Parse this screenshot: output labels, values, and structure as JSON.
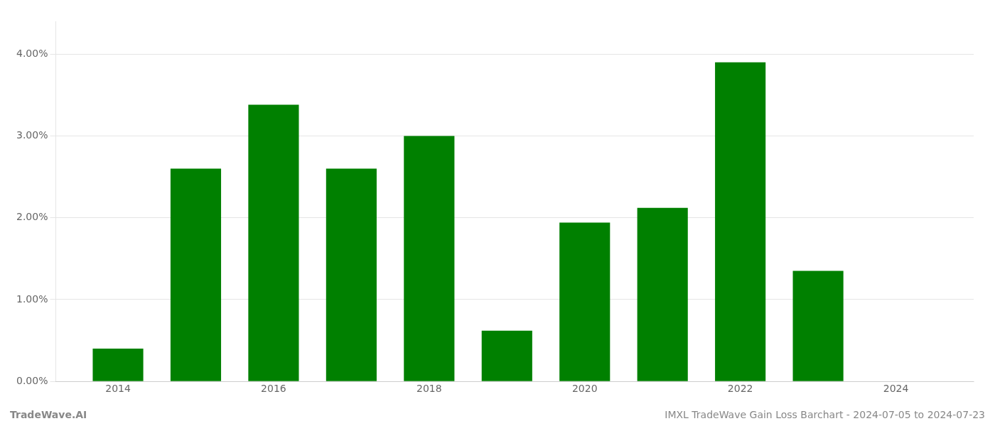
{
  "chart_data": {
    "type": "bar",
    "x": [
      2014,
      2015,
      2016,
      2017,
      2018,
      2019,
      2020,
      2021,
      2022,
      2023,
      2024
    ],
    "values": [
      0.004,
      0.026,
      0.0338,
      0.026,
      0.03,
      0.0062,
      0.0194,
      0.0212,
      0.039,
      0.0135,
      null
    ],
    "color": "#008000",
    "xlim": [
      2013.2,
      2025.0
    ],
    "xticks": [
      2014,
      2016,
      2018,
      2020,
      2022,
      2024
    ],
    "ylim": [
      0,
      0.044
    ],
    "yticks": [
      {
        "value": 0.0,
        "label": "0.00%"
      },
      {
        "value": 0.01,
        "label": "1.00%"
      },
      {
        "value": 0.02,
        "label": "2.00%"
      },
      {
        "value": 0.03,
        "label": "3.00%"
      },
      {
        "value": 0.04,
        "label": "4.00%"
      }
    ],
    "grid": true,
    "annotations": [
      "TradeWave.AI",
      "IMXL TradeWave Gain Loss Barchart - 2024-07-05 to 2024-07-23"
    ]
  }
}
